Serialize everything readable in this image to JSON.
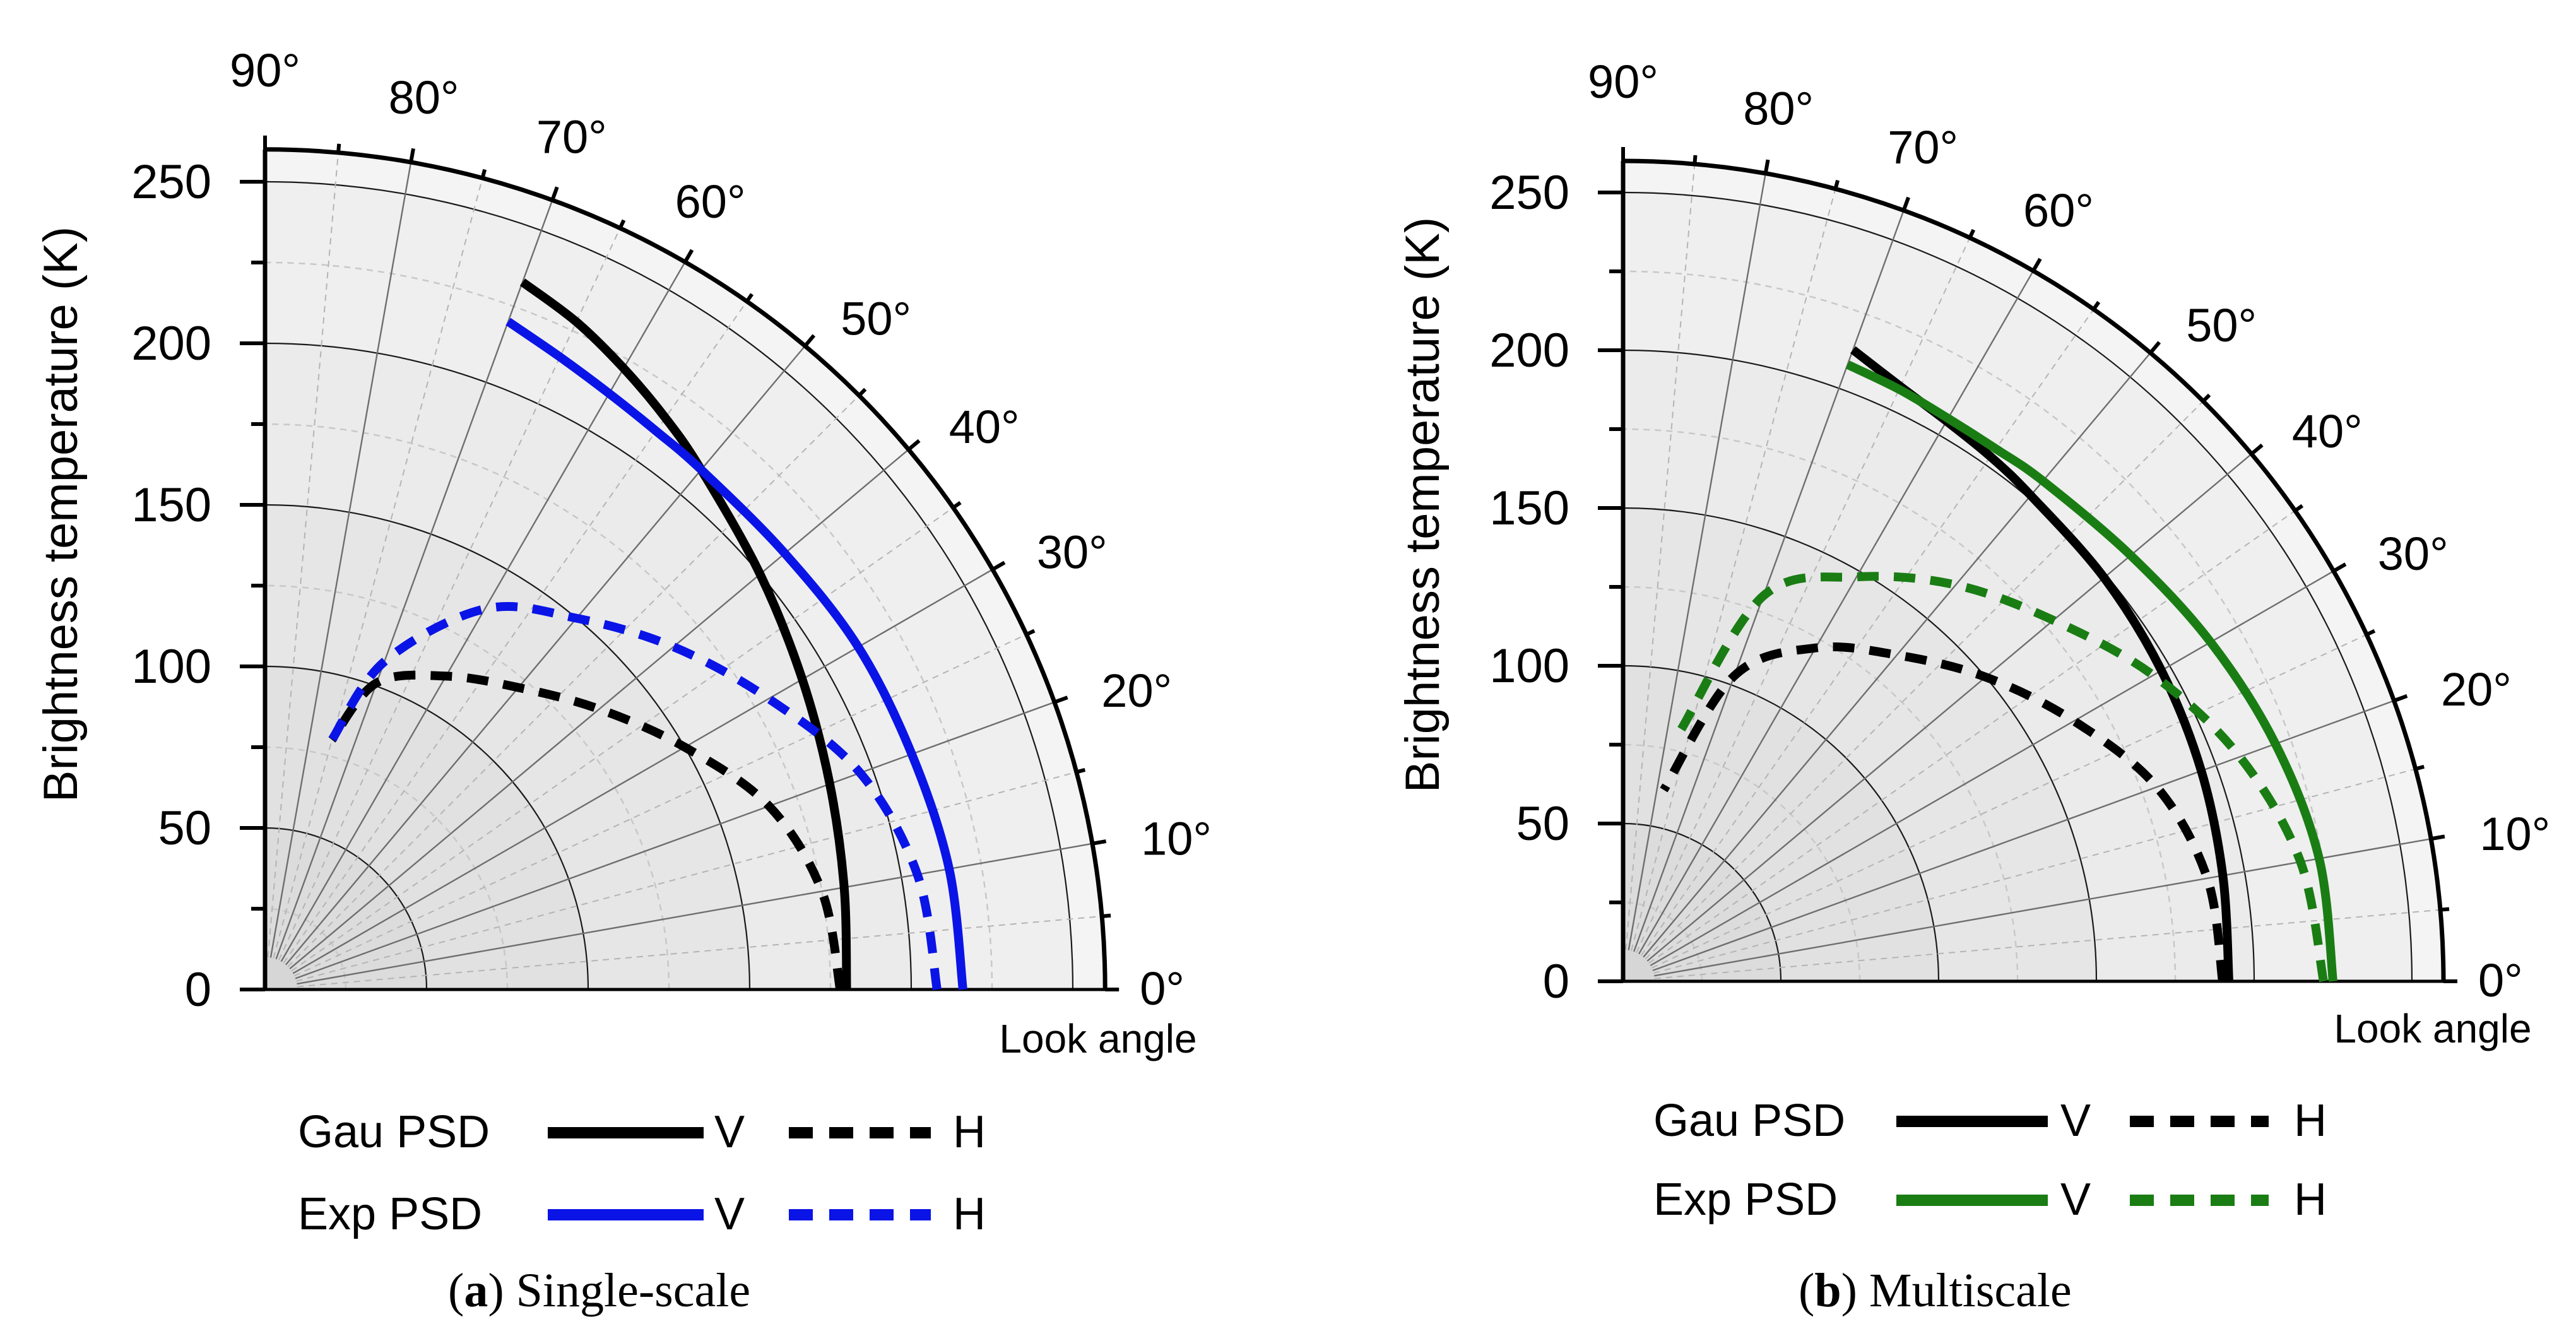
{
  "figure": {
    "panels": [
      "a",
      "b"
    ]
  },
  "chart_data": [
    {
      "type": "polar-line",
      "panel_letter": "a",
      "caption_title": "Single-scale",
      "ylabel": "Brightness temperature (K)",
      "xlabel": "Look angle",
      "r_ticks": [
        "0",
        "50",
        "100",
        "150",
        "200",
        "250"
      ],
      "angle_ticks": [
        "0°",
        "10°",
        "20°",
        "30°",
        "40°",
        "50°",
        "60°",
        "70°",
        "80°",
        "90°"
      ],
      "rlim": [
        0,
        260
      ],
      "legend": {
        "rows": [
          {
            "label": "Gau PSD",
            "v_label": "V",
            "h_label": "H",
            "color": "#000000"
          },
          {
            "label": "Exp  PSD",
            "v_label": "V",
            "h_label": "H",
            "color": "#0a14e6"
          }
        ]
      },
      "series": [
        {
          "name": "Gau PSD V",
          "color": "#000000",
          "dash": false,
          "angle": [
            0,
            10,
            20,
            30,
            40,
            50,
            55,
            60,
            65,
            70
          ],
          "values": [
            180,
            182,
            186,
            192,
            200,
            210,
            216,
            222,
            228,
            233
          ]
        },
        {
          "name": "Gau PSD H",
          "color": "#000000",
          "dash": true,
          "angle": [
            0,
            10,
            20,
            30,
            40,
            50,
            60,
            70,
            75
          ],
          "values": [
            178,
            175,
            166,
            150,
            135,
            122,
            112,
            101,
            80
          ]
        },
        {
          "name": "Exp PSD V",
          "color": "#0a14e6",
          "dash": false,
          "angle": [
            0,
            10,
            20,
            30,
            40,
            50,
            55,
            60,
            65,
            70
          ],
          "values": [
            216,
            215,
            213,
            212,
            210,
            210,
            211,
            213,
            216,
            220
          ]
        },
        {
          "name": "Exp PSD H",
          "color": "#0a14e6",
          "dash": true,
          "angle": [
            0,
            10,
            20,
            30,
            40,
            50,
            60,
            70,
            75
          ],
          "values": [
            208,
            205,
            196,
            180,
            165,
            150,
            136,
            108,
            80
          ]
        }
      ]
    },
    {
      "type": "polar-line",
      "panel_letter": "b",
      "caption_title": "Multiscale",
      "ylabel": "Brightness temperature (K)",
      "xlabel": "Look angle",
      "r_ticks": [
        "0",
        "50",
        "100",
        "150",
        "200",
        "250"
      ],
      "angle_ticks": [
        "0°",
        "10°",
        "20°",
        "30°",
        "40°",
        "50°",
        "60°",
        "70°",
        "80°",
        "90°"
      ],
      "rlim": [
        0,
        260
      ],
      "legend": {
        "rows": [
          {
            "label": "Gau PSD",
            "v_label": "V",
            "h_label": "H",
            "color": "#000000"
          },
          {
            "label": "Exp  PSD",
            "v_label": "V",
            "h_label": "H",
            "color": "#1a7d14"
          }
        ]
      },
      "series": [
        {
          "name": "Gau PSD V",
          "color": "#000000",
          "dash": false,
          "angle": [
            0,
            10,
            20,
            30,
            40,
            50,
            55,
            60,
            65,
            70
          ],
          "values": [
            192,
            193,
            195,
            197,
            199,
            201,
            203,
            205,
            208,
            213
          ]
        },
        {
          "name": "Gau PSD H",
          "color": "#000000",
          "dash": true,
          "angle": [
            0,
            10,
            20,
            30,
            40,
            50,
            60,
            70,
            78
          ],
          "values": [
            190,
            188,
            180,
            165,
            150,
            135,
            122,
            103,
            62
          ]
        },
        {
          "name": "Exp PSD V",
          "color": "#1a7d14",
          "dash": false,
          "angle": [
            0,
            10,
            20,
            30,
            40,
            50,
            55,
            60,
            65,
            70
          ],
          "values": [
            225,
            224,
            220,
            215,
            210,
            207,
            206,
            206,
            207,
            208
          ]
        },
        {
          "name": "Exp PSD H",
          "color": "#1a7d14",
          "dash": true,
          "angle": [
            0,
            10,
            20,
            30,
            40,
            50,
            60,
            70,
            77
          ],
          "values": [
            222,
            218,
            208,
            194,
            178,
            164,
            148,
            130,
            82
          ]
        }
      ]
    }
  ]
}
